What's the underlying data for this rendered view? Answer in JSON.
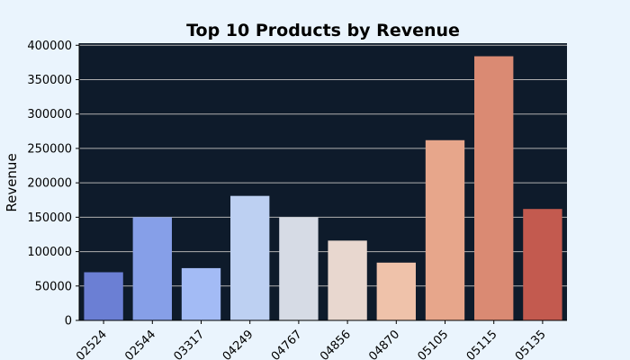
{
  "chart_data": {
    "type": "bar",
    "title": "Top 10 Products by Revenue",
    "xlabel": "",
    "ylabel": "Revenue",
    "categories": [
      "02524",
      "02544",
      "03317",
      "04249",
      "04767",
      "04856",
      "04870",
      "05105",
      "05115",
      "05135"
    ],
    "values": [
      70000,
      150000,
      76000,
      181000,
      150000,
      116000,
      84000,
      262000,
      384000,
      162000
    ],
    "ylim": [
      0,
      403000
    ],
    "yticks": [
      0,
      50000,
      100000,
      150000,
      200000,
      250000,
      300000,
      350000,
      400000
    ],
    "ytick_labels": [
      "0",
      "50000",
      "100000",
      "150000",
      "200000",
      "250000",
      "300000",
      "350000",
      "400000"
    ],
    "grid": "horizontal",
    "bar_colors": [
      "#6b7fd4",
      "#869fe8",
      "#a3bbf5",
      "#bdd0f2",
      "#d6dbe5",
      "#e8d7cf",
      "#efc2aa",
      "#e7a68b",
      "#da8a73",
      "#c35a4f"
    ],
    "plot_background": "#0e1b2b",
    "figure_background": "#eaf4fd",
    "grid_color": "#b0b0b0"
  }
}
